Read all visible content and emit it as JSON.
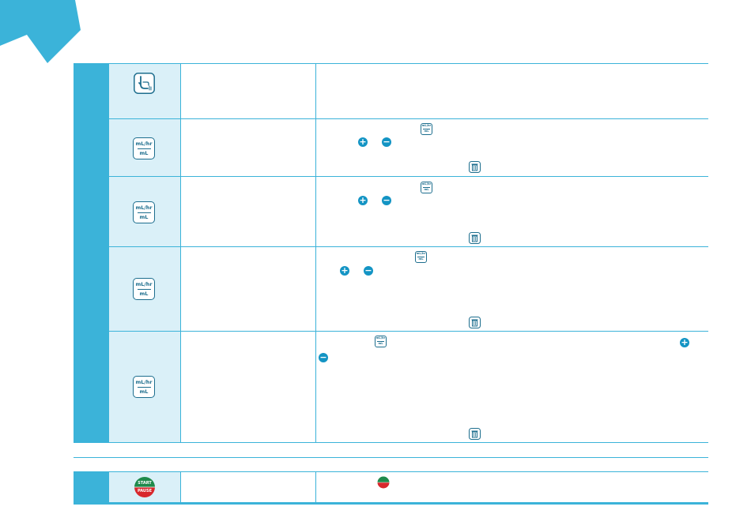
{
  "colors": {
    "accent": "#3bb3d9",
    "icon_column": "#daf0f8",
    "icon_stroke": "#1d6e8e",
    "round_button": "#1394c4",
    "start": "#1f8a4c",
    "pause": "#d8282d"
  },
  "icons": {
    "rate_volume_key": {
      "top": "mL/hr",
      "bottom": "mL"
    },
    "plus_symbol": "+",
    "minus_symbol": "−",
    "start_pause": {
      "top": "START",
      "bottom": "PAUSE"
    }
  },
  "rows": [
    {
      "icon": "hand-touch-icon"
    },
    {
      "icon": "rate-volume-key-icon"
    },
    {
      "icon": "rate-volume-key-icon"
    },
    {
      "icon": "rate-volume-key-icon"
    },
    {
      "icon": "rate-volume-key-icon"
    },
    {
      "icon": "start-pause-key-icon"
    }
  ]
}
